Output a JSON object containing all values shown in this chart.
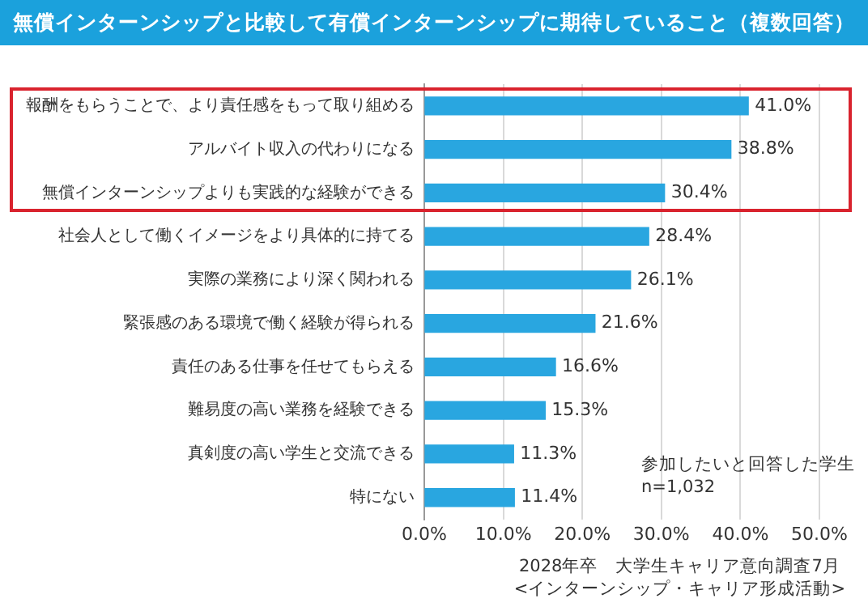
{
  "chart_data": {
    "type": "bar",
    "orientation": "horizontal",
    "title": "無償インターンシップと比較して有償インターンシップに期待していること（複数回答）",
    "categories": [
      "報酬をもらうことで、より責任感をもって取り組める",
      "アルバイト収入の代わりになる",
      "無償インターンシップよりも実践的な経験ができる",
      "社会人として働くイメージをより具体的に持てる",
      "実際の業務により深く関われる",
      "緊張感のある環境で働く経験が得られる",
      "責任のある仕事を任せてもらえる",
      "難易度の高い業務を経験できる",
      "真剣度の高い学生と交流できる",
      "特にない"
    ],
    "values": [
      41.0,
      38.8,
      30.4,
      28.4,
      26.1,
      21.6,
      16.6,
      15.3,
      11.3,
      11.4
    ],
    "value_labels": [
      "41.0%",
      "38.8%",
      "30.4%",
      "28.4%",
      "26.1%",
      "21.6%",
      "16.6%",
      "15.3%",
      "11.3%",
      "11.4%"
    ],
    "color": "#29a6e0",
    "xlim": [
      0,
      50
    ],
    "xticks": [
      {
        "value": 0,
        "label": "0.0%"
      },
      {
        "value": 10,
        "label": "10.0%"
      },
      {
        "value": 20,
        "label": "20.0%"
      },
      {
        "value": 30,
        "label": "30.0%"
      },
      {
        "value": 40,
        "label": "40.0%"
      },
      {
        "value": 50,
        "label": "50.0%"
      }
    ],
    "grid": "x",
    "annotations": [
      "参加したいと回答した学生",
      "n=1,032",
      "2028年卒　大学生キャリア意向調査7月",
      "<インターンシップ・キャリア形成活動>"
    ]
  }
}
